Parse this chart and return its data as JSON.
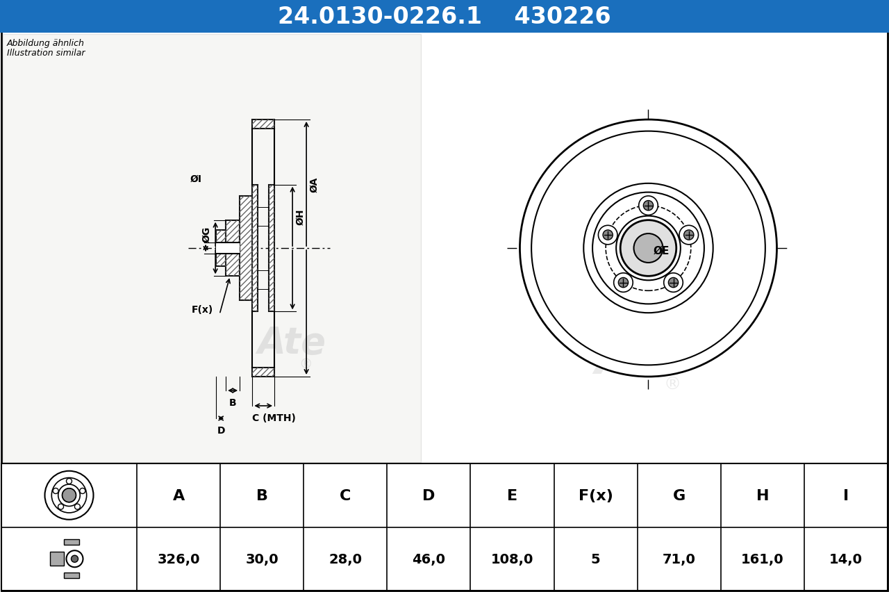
{
  "title_text": "24.0130-0226.1    430226",
  "subtitle_line1": "Abbildung ähnlich",
  "subtitle_line2": "Illustration similar",
  "title_bg": "#1a6fbd",
  "title_fg": "#ffffff",
  "bg_color": "#ffffff",
  "table_headers": [
    "A",
    "B",
    "C",
    "D",
    "E",
    "F(x)",
    "G",
    "H",
    "I"
  ],
  "table_values": [
    "326,0",
    "30,0",
    "28,0",
    "46,0",
    "108,0",
    "5",
    "71,0",
    "161,0",
    "14,0"
  ]
}
